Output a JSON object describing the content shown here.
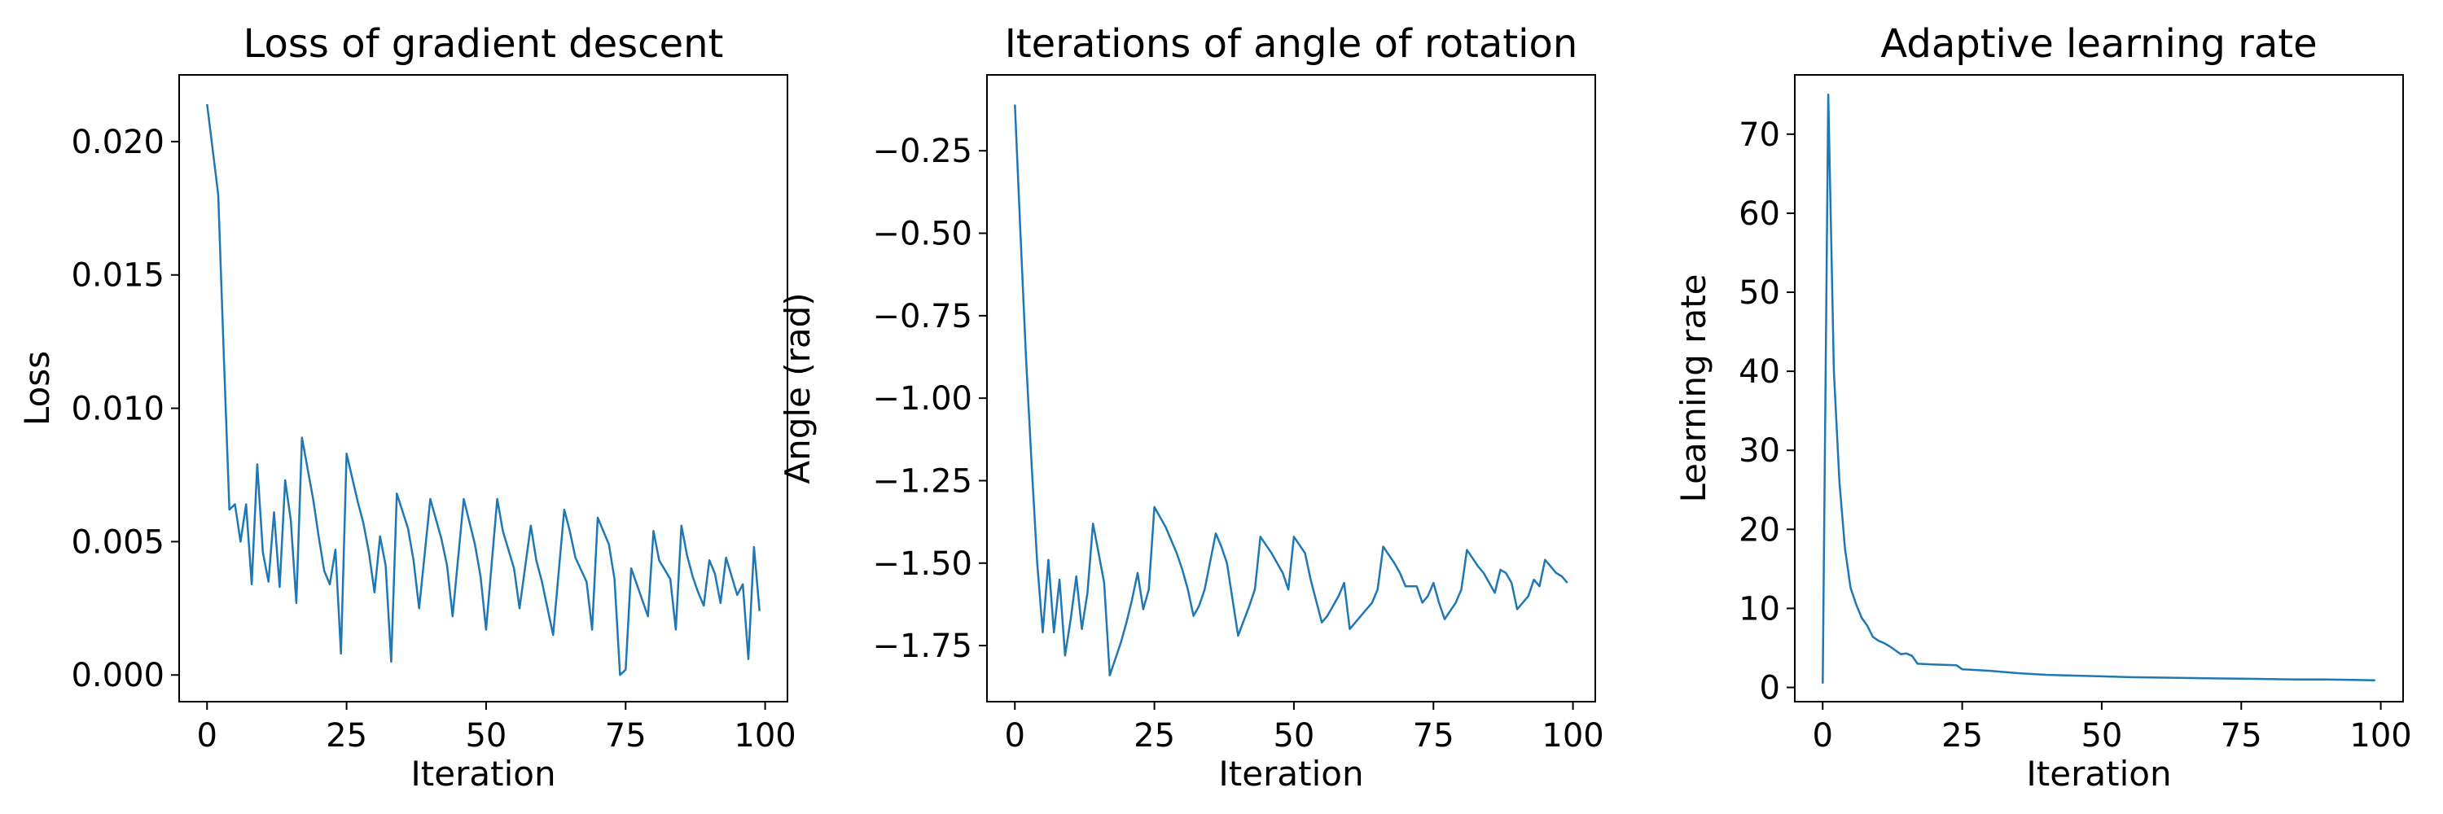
{
  "chart_data": [
    {
      "type": "line",
      "title": "Loss of gradient descent",
      "xlabel": "Iteration",
      "ylabel": "Loss",
      "xlim": [
        -5,
        104
      ],
      "ylim": [
        -0.001,
        0.0225
      ],
      "xticks": [
        0,
        25,
        50,
        75,
        100
      ],
      "xtick_labels": [
        "0",
        "25",
        "50",
        "75",
        "100"
      ],
      "yticks": [
        0.0,
        0.005,
        0.01,
        0.015,
        0.02
      ],
      "ytick_labels": [
        "0.000",
        "0.005",
        "0.010",
        "0.015",
        "0.020"
      ],
      "grid": false,
      "color": "#1f77b4",
      "series": [
        {
          "x": [
            0,
            2,
            3,
            4,
            5,
            6,
            7,
            8,
            9,
            10,
            11,
            12,
            13,
            14,
            15,
            16,
            17,
            19,
            20,
            21,
            22,
            23,
            24,
            25,
            27,
            28,
            29,
            30,
            31,
            32,
            33,
            34,
            36,
            37,
            38,
            40,
            42,
            43,
            44,
            46,
            48,
            49,
            50,
            52,
            53,
            55,
            56,
            58,
            59,
            60,
            62,
            64,
            65,
            66,
            68,
            69,
            70,
            72,
            73,
            74,
            75,
            76,
            77,
            79,
            80,
            81,
            83,
            84,
            85,
            86,
            87,
            88,
            89,
            90,
            91,
            92,
            93,
            94,
            95,
            96,
            97,
            98,
            99
          ],
          "y": [
            0.0214,
            0.018,
            0.012,
            0.0062,
            0.0064,
            0.005,
            0.0064,
            0.0034,
            0.0079,
            0.0046,
            0.0035,
            0.0061,
            0.0033,
            0.0073,
            0.0058,
            0.0027,
            0.0089,
            0.0066,
            0.0052,
            0.0039,
            0.0034,
            0.0047,
            0.0008,
            0.0083,
            0.0065,
            0.0057,
            0.0046,
            0.0031,
            0.0052,
            0.0041,
            0.0005,
            0.0068,
            0.0055,
            0.0043,
            0.0025,
            0.0066,
            0.0051,
            0.0041,
            0.0022,
            0.0066,
            0.0049,
            0.0037,
            0.0017,
            0.0066,
            0.0054,
            0.004,
            0.0025,
            0.0056,
            0.0043,
            0.0035,
            0.0015,
            0.0062,
            0.0054,
            0.0044,
            0.0035,
            0.0017,
            0.0059,
            0.0049,
            0.0036,
            0.0,
            0.0002,
            0.004,
            0.0034,
            0.0022,
            0.0054,
            0.0043,
            0.0036,
            0.0017,
            0.0056,
            0.0045,
            0.0037,
            0.0031,
            0.0026,
            0.0043,
            0.0038,
            0.0027,
            0.0044,
            0.0037,
            0.003,
            0.0034,
            0.0006,
            0.0048,
            0.0024
          ]
        }
      ]
    },
    {
      "type": "line",
      "title": "Iterations of angle of rotation",
      "xlabel": "Iteration",
      "ylabel": "Angle (rad)",
      "xlim": [
        -5,
        104
      ],
      "ylim": [
        -1.92,
        -0.02
      ],
      "xticks": [
        0,
        25,
        50,
        75,
        100
      ],
      "xtick_labels": [
        "0",
        "25",
        "50",
        "75",
        "100"
      ],
      "yticks": [
        -1.75,
        -1.5,
        -1.25,
        -1.0,
        -0.75,
        -0.5,
        -0.25
      ],
      "ytick_labels": [
        "−1.75",
        "−1.50",
        "−1.25",
        "−1.00",
        "−0.75",
        "−0.50",
        "−0.25"
      ],
      "grid": false,
      "color": "#1f77b4",
      "series": [
        {
          "x": [
            0,
            1,
            2,
            3,
            4,
            5,
            6,
            7,
            8,
            9,
            10,
            11,
            12,
            13,
            14,
            15,
            16,
            17,
            19,
            20,
            21,
            22,
            23,
            24,
            25,
            27,
            28,
            29,
            30,
            31,
            32,
            33,
            34,
            36,
            37,
            38,
            40,
            42,
            43,
            44,
            46,
            48,
            49,
            50,
            52,
            53,
            55,
            56,
            58,
            59,
            60,
            62,
            64,
            65,
            66,
            68,
            69,
            70,
            72,
            73,
            74,
            75,
            76,
            77,
            79,
            80,
            81,
            83,
            84,
            85,
            86,
            87,
            88,
            89,
            90,
            91,
            92,
            93,
            94,
            95,
            96,
            97,
            98,
            99
          ],
          "y": [
            -0.11,
            -0.5,
            -0.88,
            -1.2,
            -1.5,
            -1.71,
            -1.49,
            -1.71,
            -1.55,
            -1.78,
            -1.67,
            -1.54,
            -1.7,
            -1.59,
            -1.38,
            -1.47,
            -1.56,
            -1.84,
            -1.74,
            -1.68,
            -1.61,
            -1.53,
            -1.64,
            -1.58,
            -1.33,
            -1.39,
            -1.43,
            -1.47,
            -1.52,
            -1.58,
            -1.66,
            -1.63,
            -1.58,
            -1.41,
            -1.45,
            -1.5,
            -1.72,
            -1.63,
            -1.58,
            -1.42,
            -1.47,
            -1.53,
            -1.58,
            -1.42,
            -1.47,
            -1.55,
            -1.68,
            -1.66,
            -1.6,
            -1.56,
            -1.7,
            -1.66,
            -1.62,
            -1.58,
            -1.45,
            -1.5,
            -1.53,
            -1.57,
            -1.57,
            -1.62,
            -1.6,
            -1.56,
            -1.62,
            -1.67,
            -1.62,
            -1.58,
            -1.46,
            -1.51,
            -1.53,
            -1.56,
            -1.59,
            -1.52,
            -1.53,
            -1.56,
            -1.64,
            -1.62,
            -1.6,
            -1.55,
            -1.57,
            -1.49,
            -1.51,
            -1.53,
            -1.54,
            -1.56
          ]
        }
      ]
    },
    {
      "type": "line",
      "title": "Adaptive learning rate",
      "xlabel": "Iteration",
      "ylabel": "Learning rate",
      "xlim": [
        -5,
        104
      ],
      "ylim": [
        -1.8,
        77.5
      ],
      "xticks": [
        0,
        25,
        50,
        75,
        100
      ],
      "xtick_labels": [
        "0",
        "25",
        "50",
        "75",
        "100"
      ],
      "yticks": [
        0,
        10,
        20,
        30,
        40,
        50,
        60,
        70
      ],
      "ytick_labels": [
        "0",
        "10",
        "20",
        "30",
        "40",
        "50",
        "60",
        "70"
      ],
      "grid": false,
      "color": "#1f77b4",
      "series": [
        {
          "x": [
            0,
            1,
            2,
            3,
            4,
            5,
            6,
            7,
            8,
            9,
            10,
            11,
            12,
            13,
            14,
            15,
            16,
            17,
            20,
            24,
            25,
            30,
            35,
            40,
            45,
            50,
            55,
            60,
            65,
            70,
            75,
            80,
            85,
            90,
            95,
            99
          ],
          "y": [
            0.5,
            75.0,
            40.0,
            26.0,
            17.5,
            12.6,
            10.5,
            8.8,
            7.8,
            6.4,
            5.9,
            5.6,
            5.2,
            4.7,
            4.2,
            4.3,
            4.0,
            3.0,
            2.9,
            2.8,
            2.3,
            2.1,
            1.8,
            1.6,
            1.5,
            1.4,
            1.3,
            1.25,
            1.2,
            1.15,
            1.1,
            1.05,
            1.0,
            1.0,
            0.95,
            0.9
          ]
        }
      ]
    }
  ]
}
